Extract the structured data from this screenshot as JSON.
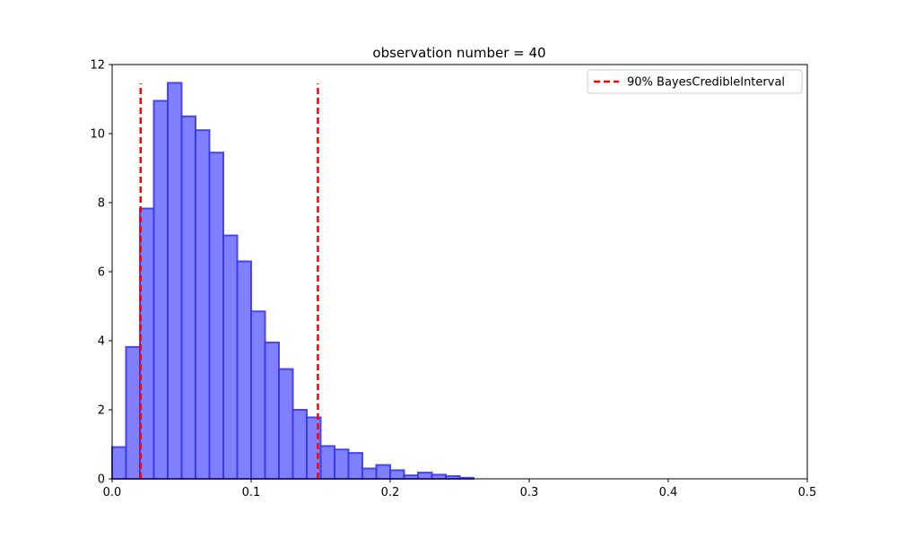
{
  "chart_data": {
    "type": "bar",
    "title": "observation number = 40",
    "xlabel": "",
    "ylabel": "",
    "xlim": [
      0,
      0.5
    ],
    "ylim": [
      0,
      12
    ],
    "x_ticks": [
      "0.0",
      "0.1",
      "0.2",
      "0.3",
      "0.4",
      "0.5"
    ],
    "y_ticks": [
      "0",
      "2",
      "4",
      "6",
      "8",
      "10",
      "12"
    ],
    "grid": false,
    "bin_width": 0.01,
    "bins": [
      {
        "start": 0.0,
        "value": 0.92
      },
      {
        "start": 0.01,
        "value": 3.82
      },
      {
        "start": 0.02,
        "value": 7.83
      },
      {
        "start": 0.03,
        "value": 10.95
      },
      {
        "start": 0.04,
        "value": 11.47
      },
      {
        "start": 0.05,
        "value": 10.5
      },
      {
        "start": 0.06,
        "value": 10.1
      },
      {
        "start": 0.07,
        "value": 9.45
      },
      {
        "start": 0.08,
        "value": 7.05
      },
      {
        "start": 0.09,
        "value": 6.3
      },
      {
        "start": 0.1,
        "value": 4.85
      },
      {
        "start": 0.11,
        "value": 3.95
      },
      {
        "start": 0.12,
        "value": 3.18
      },
      {
        "start": 0.13,
        "value": 2.0
      },
      {
        "start": 0.14,
        "value": 1.78
      },
      {
        "start": 0.15,
        "value": 0.95
      },
      {
        "start": 0.16,
        "value": 0.85
      },
      {
        "start": 0.17,
        "value": 0.75
      },
      {
        "start": 0.18,
        "value": 0.3
      },
      {
        "start": 0.19,
        "value": 0.4
      },
      {
        "start": 0.2,
        "value": 0.25
      },
      {
        "start": 0.21,
        "value": 0.1
      },
      {
        "start": 0.22,
        "value": 0.18
      },
      {
        "start": 0.23,
        "value": 0.12
      },
      {
        "start": 0.24,
        "value": 0.08
      },
      {
        "start": 0.25,
        "value": 0.03
      }
    ],
    "bar_fill": "#8080ff",
    "bar_edge": "#3333ee",
    "credible_interval": {
      "label": "90% BayesCredibleInterval",
      "lower": 0.0205,
      "upper": 0.148,
      "line_top": 11.45,
      "color": "#ff0000"
    },
    "legend_position": "top-right"
  }
}
